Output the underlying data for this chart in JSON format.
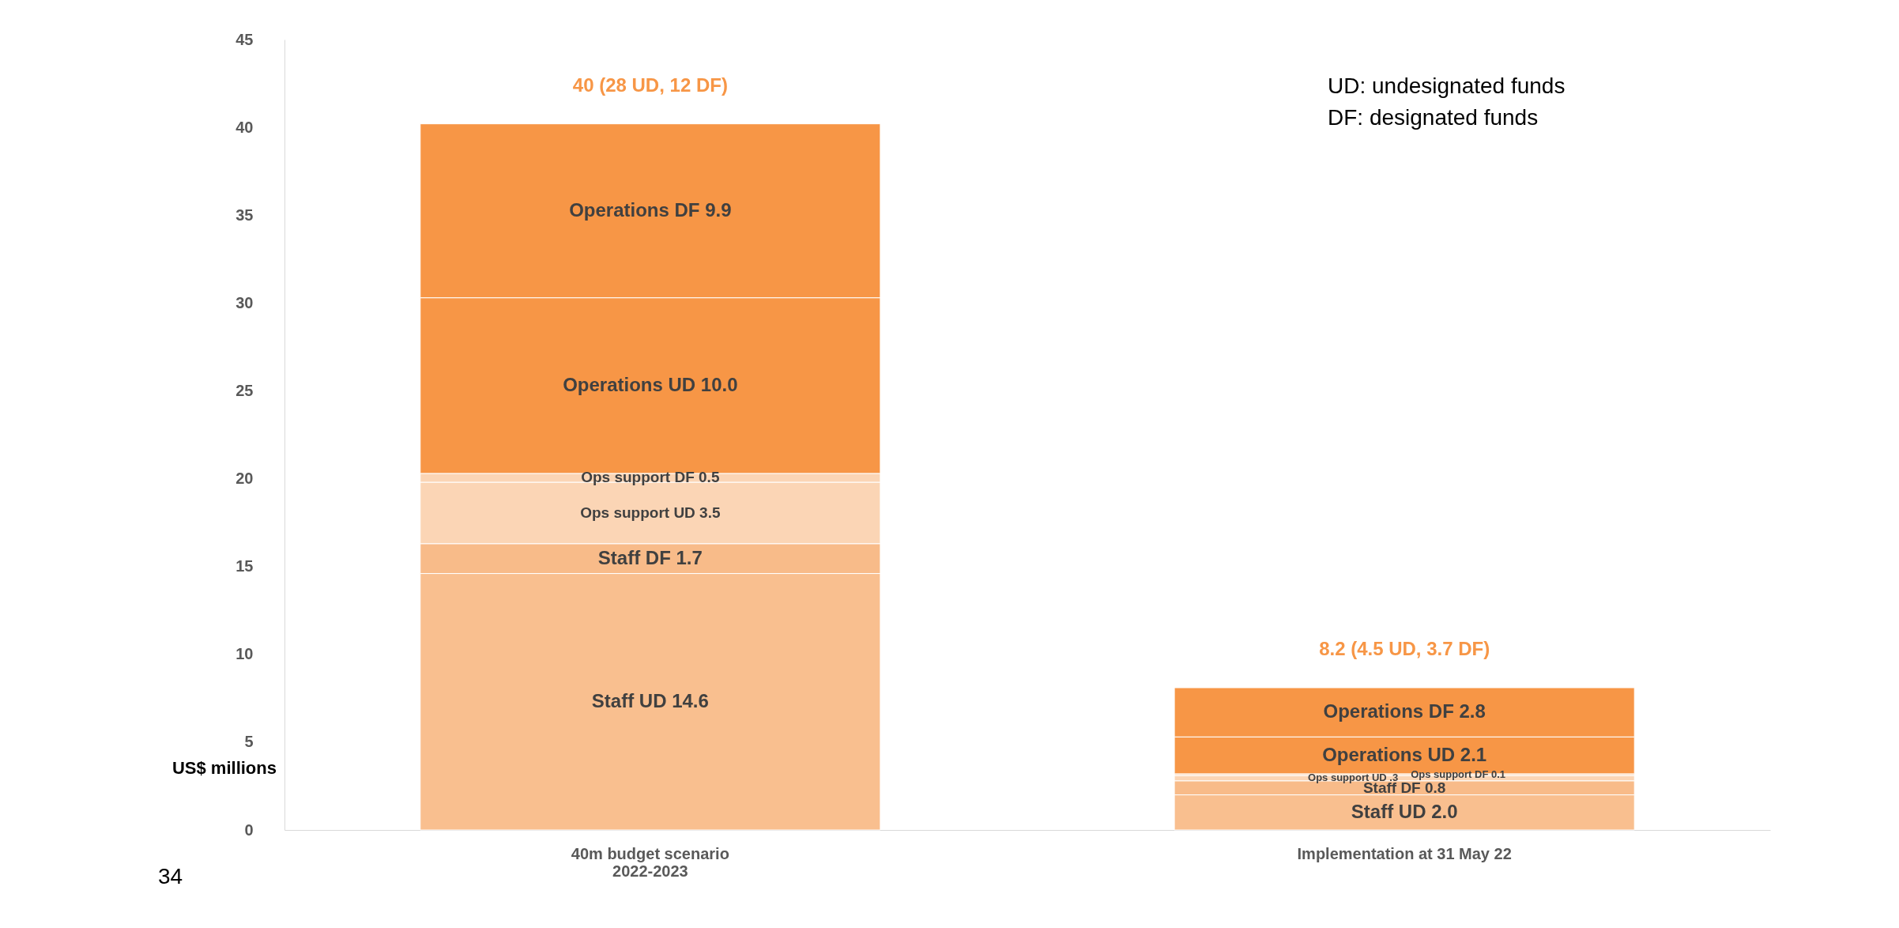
{
  "chart_data": {
    "type": "bar",
    "stacked": true,
    "ylabel": "US$ millions",
    "categories": [
      "40m budget scenario\n2022-2023",
      "Implementation at 31 May 22"
    ],
    "series": [
      {
        "color": "#f9bf8f",
        "values": [
          14.6,
          2.0
        ],
        "value_labels": [
          "Staff UD 14.6",
          "Staff UD 2.0"
        ]
      },
      {
        "color": "#f8bb89",
        "values": [
          1.7,
          0.8
        ],
        "value_labels": [
          "Staff DF 1.7",
          "Staff DF 0.8"
        ]
      },
      {
        "color": "#fbd5b5",
        "values": [
          3.5,
          0.3
        ],
        "value_labels": [
          "Ops support  UD 3.5",
          "Ops support UD .3"
        ]
      },
      {
        "color": "#fbd5b5",
        "values": [
          0.5,
          0.1
        ],
        "value_labels": [
          "Ops support  DF 0.5",
          "Ops support DF 0.1"
        ]
      },
      {
        "color": "#f79646",
        "values": [
          10.0,
          2.1
        ],
        "value_labels": [
          "Operations UD 10.0",
          "Operations UD 2.1"
        ]
      },
      {
        "color": "#f79646",
        "values": [
          9.9,
          2.8
        ],
        "value_labels": [
          "Operations DF 9.9",
          "Operations DF 2.8"
        ]
      }
    ],
    "totals": [
      "40 (28 UD, 12 DF)",
      "8.2 (4.5 UD, 3.7 DF)"
    ],
    "ylim": [
      0,
      45
    ],
    "yticks": [
      0,
      5,
      10,
      15,
      20,
      25,
      30,
      35,
      40,
      45
    ],
    "grid": false,
    "legend": false,
    "annotations": [
      "UD: undesignated funds",
      "DF: designated funds",
      "34"
    ]
  }
}
